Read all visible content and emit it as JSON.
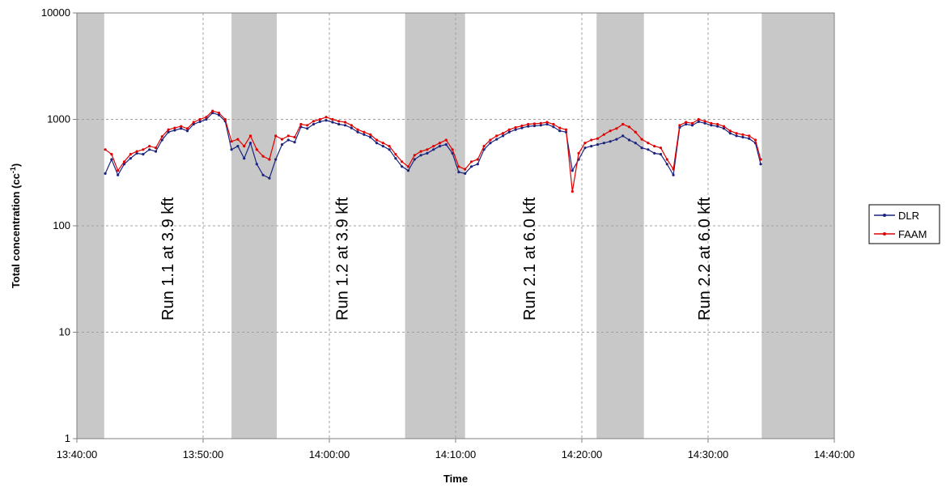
{
  "chart_data": {
    "type": "line",
    "title": "",
    "xlabel": "Time",
    "ylabel": "Total concentration (cc",
    "ylabel_sup": "-1",
    "ylabel_close": ")",
    "yscale": "log",
    "ylim": [
      1,
      10000
    ],
    "xlim": [
      "13:40:00",
      "14:40:00"
    ],
    "x_ticks": [
      "13:40:00",
      "13:50:00",
      "14:00:00",
      "14:10:00",
      "14:20:00",
      "14:30:00",
      "14:40:00"
    ],
    "y_ticks": [
      "1",
      "10",
      "100",
      "1000",
      "10000"
    ],
    "grid": true,
    "legend_position": "right",
    "shaded_periods": [
      [
        "13:40:00",
        "13:42:10"
      ],
      [
        "13:52:15",
        "13:55:50"
      ],
      [
        "14:06:00",
        "14:10:45"
      ],
      [
        "14:21:10",
        "14:24:55"
      ],
      [
        "14:34:15",
        "14:40:00"
      ]
    ],
    "annotations": [
      {
        "text": "Run 1.1 at 3.9 kft",
        "x": "13:47:10",
        "y": 150
      },
      {
        "text": "Run 1.2 at 3.9 kft",
        "x": "14:01:00",
        "y": 150
      },
      {
        "text": "Run 2.1 at 6.0 kft",
        "x": "14:15:50",
        "y": 150
      },
      {
        "text": "Run 2.2 at 6.0 kft",
        "x": "14:29:40",
        "y": 150
      }
    ],
    "series": [
      {
        "name": "DLR",
        "color": "#1a237e",
        "points": [
          [
            "13:42:15",
            310
          ],
          [
            "13:42:45",
            420
          ],
          [
            "13:43:15",
            300
          ],
          [
            "13:43:45",
            380
          ],
          [
            "13:44:15",
            430
          ],
          [
            "13:44:45",
            480
          ],
          [
            "13:45:15",
            470
          ],
          [
            "13:45:45",
            520
          ],
          [
            "13:46:15",
            500
          ],
          [
            "13:46:45",
            640
          ],
          [
            "13:47:15",
            760
          ],
          [
            "13:47:45",
            790
          ],
          [
            "13:48:15",
            820
          ],
          [
            "13:48:45",
            780
          ],
          [
            "13:49:15",
            900
          ],
          [
            "13:49:45",
            950
          ],
          [
            "13:50:15",
            1000
          ],
          [
            "13:50:45",
            1150
          ],
          [
            "13:51:15",
            1100
          ],
          [
            "13:51:45",
            960
          ],
          [
            "13:52:15",
            520
          ],
          [
            "13:52:45",
            560
          ],
          [
            "13:53:15",
            430
          ],
          [
            "13:53:45",
            600
          ],
          [
            "13:54:15",
            380
          ],
          [
            "13:54:45",
            300
          ],
          [
            "13:55:15",
            280
          ],
          [
            "13:55:45",
            420
          ],
          [
            "13:56:15",
            580
          ],
          [
            "13:56:45",
            640
          ],
          [
            "13:57:15",
            610
          ],
          [
            "13:57:45",
            850
          ],
          [
            "13:58:15",
            820
          ],
          [
            "13:58:45",
            900
          ],
          [
            "13:59:15",
            950
          ],
          [
            "13:59:45",
            980
          ],
          [
            "14:00:15",
            940
          ],
          [
            "14:00:45",
            900
          ],
          [
            "14:01:15",
            880
          ],
          [
            "14:01:45",
            830
          ],
          [
            "14:02:15",
            760
          ],
          [
            "14:02:45",
            720
          ],
          [
            "14:03:15",
            680
          ],
          [
            "14:03:45",
            600
          ],
          [
            "14:04:15",
            560
          ],
          [
            "14:04:45",
            520
          ],
          [
            "14:05:15",
            430
          ],
          [
            "14:05:45",
            360
          ],
          [
            "14:06:15",
            330
          ],
          [
            "14:06:45",
            420
          ],
          [
            "14:07:15",
            460
          ],
          [
            "14:07:45",
            480
          ],
          [
            "14:08:15",
            520
          ],
          [
            "14:08:45",
            560
          ],
          [
            "14:09:15",
            580
          ],
          [
            "14:09:45",
            480
          ],
          [
            "14:10:15",
            320
          ],
          [
            "14:10:45",
            310
          ],
          [
            "14:11:15",
            360
          ],
          [
            "14:11:45",
            380
          ],
          [
            "14:12:15",
            520
          ],
          [
            "14:12:45",
            600
          ],
          [
            "14:13:15",
            650
          ],
          [
            "14:13:45",
            700
          ],
          [
            "14:14:15",
            760
          ],
          [
            "14:14:45",
            800
          ],
          [
            "14:15:15",
            830
          ],
          [
            "14:15:45",
            860
          ],
          [
            "14:16:15",
            870
          ],
          [
            "14:16:45",
            880
          ],
          [
            "14:17:15",
            900
          ],
          [
            "14:17:45",
            850
          ],
          [
            "14:18:15",
            780
          ],
          [
            "14:18:45",
            760
          ],
          [
            "14:19:15",
            330
          ],
          [
            "14:19:45",
            420
          ],
          [
            "14:20:15",
            540
          ],
          [
            "14:20:45",
            560
          ],
          [
            "14:21:15",
            580
          ],
          [
            "14:21:45",
            600
          ],
          [
            "14:22:15",
            620
          ],
          [
            "14:22:45",
            650
          ],
          [
            "14:23:15",
            700
          ],
          [
            "14:23:45",
            640
          ],
          [
            "14:24:15",
            600
          ],
          [
            "14:24:45",
            540
          ],
          [
            "14:25:15",
            520
          ],
          [
            "14:25:45",
            480
          ],
          [
            "14:26:15",
            470
          ],
          [
            "14:26:45",
            380
          ],
          [
            "14:27:15",
            300
          ],
          [
            "14:27:45",
            840
          ],
          [
            "14:28:15",
            900
          ],
          [
            "14:28:45",
            880
          ],
          [
            "14:29:15",
            950
          ],
          [
            "14:29:45",
            920
          ],
          [
            "14:30:15",
            880
          ],
          [
            "14:30:45",
            860
          ],
          [
            "14:31:15",
            820
          ],
          [
            "14:31:45",
            740
          ],
          [
            "14:32:15",
            700
          ],
          [
            "14:32:45",
            680
          ],
          [
            "14:33:15",
            660
          ],
          [
            "14:33:45",
            600
          ],
          [
            "14:34:10",
            380
          ]
        ]
      },
      {
        "name": "FAAM",
        "color": "#e00000",
        "points": [
          [
            "13:42:15",
            520
          ],
          [
            "13:42:45",
            470
          ],
          [
            "13:43:15",
            330
          ],
          [
            "13:43:45",
            400
          ],
          [
            "13:44:15",
            470
          ],
          [
            "13:44:45",
            500
          ],
          [
            "13:45:15",
            520
          ],
          [
            "13:45:45",
            560
          ],
          [
            "13:46:15",
            540
          ],
          [
            "13:46:45",
            690
          ],
          [
            "13:47:15",
            800
          ],
          [
            "13:47:45",
            830
          ],
          [
            "13:48:15",
            860
          ],
          [
            "13:48:45",
            820
          ],
          [
            "13:49:15",
            940
          ],
          [
            "13:49:45",
            1000
          ],
          [
            "13:50:15",
            1050
          ],
          [
            "13:50:45",
            1200
          ],
          [
            "13:51:15",
            1150
          ],
          [
            "13:51:45",
            1000
          ],
          [
            "13:52:15",
            620
          ],
          [
            "13:52:45",
            650
          ],
          [
            "13:53:15",
            560
          ],
          [
            "13:53:45",
            700
          ],
          [
            "13:54:15",
            520
          ],
          [
            "13:54:45",
            450
          ],
          [
            "13:55:15",
            420
          ],
          [
            "13:55:45",
            700
          ],
          [
            "13:56:15",
            650
          ],
          [
            "13:56:45",
            700
          ],
          [
            "13:57:15",
            680
          ],
          [
            "13:57:45",
            900
          ],
          [
            "13:58:15",
            880
          ],
          [
            "13:58:45",
            960
          ],
          [
            "13:59:15",
            1000
          ],
          [
            "13:59:45",
            1050
          ],
          [
            "14:00:15",
            1000
          ],
          [
            "14:00:45",
            960
          ],
          [
            "14:01:15",
            940
          ],
          [
            "14:01:45",
            880
          ],
          [
            "14:02:15",
            800
          ],
          [
            "14:02:45",
            760
          ],
          [
            "14:03:15",
            720
          ],
          [
            "14:03:45",
            640
          ],
          [
            "14:04:15",
            600
          ],
          [
            "14:04:45",
            560
          ],
          [
            "14:05:15",
            470
          ],
          [
            "14:05:45",
            400
          ],
          [
            "14:06:15",
            360
          ],
          [
            "14:06:45",
            460
          ],
          [
            "14:07:15",
            500
          ],
          [
            "14:07:45",
            520
          ],
          [
            "14:08:15",
            560
          ],
          [
            "14:08:45",
            600
          ],
          [
            "14:09:15",
            640
          ],
          [
            "14:09:45",
            520
          ],
          [
            "14:10:15",
            360
          ],
          [
            "14:10:45",
            340
          ],
          [
            "14:11:15",
            400
          ],
          [
            "14:11:45",
            420
          ],
          [
            "14:12:15",
            560
          ],
          [
            "14:12:45",
            640
          ],
          [
            "14:13:15",
            700
          ],
          [
            "14:13:45",
            740
          ],
          [
            "14:14:15",
            800
          ],
          [
            "14:14:45",
            840
          ],
          [
            "14:15:15",
            870
          ],
          [
            "14:15:45",
            900
          ],
          [
            "14:16:15",
            910
          ],
          [
            "14:16:45",
            920
          ],
          [
            "14:17:15",
            940
          ],
          [
            "14:17:45",
            900
          ],
          [
            "14:18:15",
            830
          ],
          [
            "14:18:45",
            800
          ],
          [
            "14:19:15",
            210
          ],
          [
            "14:19:45",
            480
          ],
          [
            "14:20:15",
            600
          ],
          [
            "14:20:45",
            640
          ],
          [
            "14:21:15",
            660
          ],
          [
            "14:21:45",
            720
          ],
          [
            "14:22:15",
            780
          ],
          [
            "14:22:45",
            820
          ],
          [
            "14:23:15",
            900
          ],
          [
            "14:23:45",
            850
          ],
          [
            "14:24:15",
            760
          ],
          [
            "14:24:45",
            650
          ],
          [
            "14:25:15",
            600
          ],
          [
            "14:25:45",
            560
          ],
          [
            "14:26:15",
            540
          ],
          [
            "14:26:45",
            420
          ],
          [
            "14:27:15",
            340
          ],
          [
            "14:27:45",
            880
          ],
          [
            "14:28:15",
            940
          ],
          [
            "14:28:45",
            920
          ],
          [
            "14:29:15",
            1000
          ],
          [
            "14:29:45",
            960
          ],
          [
            "14:30:15",
            920
          ],
          [
            "14:30:45",
            900
          ],
          [
            "14:31:15",
            860
          ],
          [
            "14:31:45",
            780
          ],
          [
            "14:32:15",
            740
          ],
          [
            "14:32:45",
            720
          ],
          [
            "14:33:15",
            700
          ],
          [
            "14:33:45",
            640
          ],
          [
            "14:34:10",
            420
          ]
        ]
      }
    ]
  }
}
